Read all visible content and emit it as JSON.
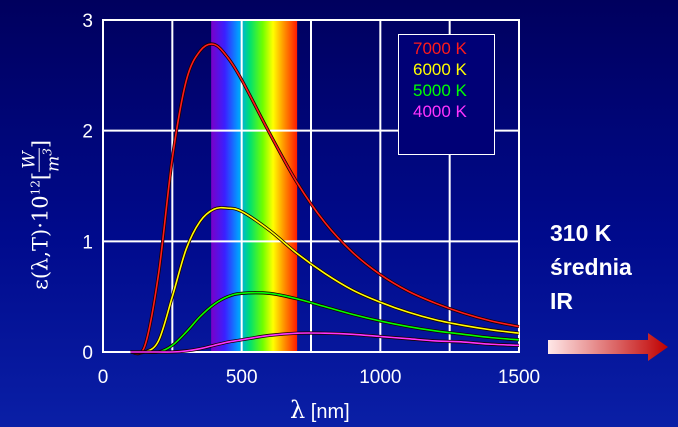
{
  "chart_data": {
    "type": "line",
    "title": "",
    "xlabel": {
      "symbol": "λ",
      "unit": "[nm]"
    },
    "ylabel": {
      "main": "ε(λ,T)·10",
      "exponent": "12",
      "bracket_open": "[",
      "numerator": "W",
      "denominator": "m",
      "denominator_exp": "3",
      "bracket_close": "]"
    },
    "xlim": [
      0,
      1500
    ],
    "ylim": [
      0,
      3
    ],
    "xticks": [
      0,
      500,
      1000,
      1500
    ],
    "yticks": [
      0,
      1,
      2,
      3
    ],
    "grid": true,
    "visible_spectrum_nm": [
      390,
      700
    ],
    "legend_position": "top-right",
    "x": [
      100,
      150,
      200,
      250,
      300,
      350,
      400,
      450,
      500,
      600,
      700,
      800,
      900,
      1000,
      1100,
      1200,
      1300,
      1400,
      1500
    ],
    "series": [
      {
        "name": "7000 K",
        "color": "#ff1a1a",
        "values": [
          0.0,
          0.05,
          0.7,
          1.75,
          2.45,
          2.72,
          2.78,
          2.66,
          2.46,
          1.98,
          1.53,
          1.17,
          0.9,
          0.7,
          0.55,
          0.44,
          0.35,
          0.28,
          0.23
        ]
      },
      {
        "name": "6000 K",
        "color": "#ffff00",
        "values": [
          0.0,
          0.0,
          0.1,
          0.5,
          0.93,
          1.18,
          1.29,
          1.3,
          1.27,
          1.1,
          0.89,
          0.71,
          0.56,
          0.45,
          0.36,
          0.29,
          0.24,
          0.2,
          0.17
        ]
      },
      {
        "name": "5000 K",
        "color": "#00ff00",
        "values": [
          0.0,
          0.0,
          0.0,
          0.06,
          0.18,
          0.32,
          0.43,
          0.5,
          0.53,
          0.53,
          0.48,
          0.41,
          0.34,
          0.28,
          0.23,
          0.19,
          0.16,
          0.13,
          0.11
        ]
      },
      {
        "name": "4000 K",
        "color": "#ff33ff",
        "values": [
          0.0,
          0.0,
          0.0,
          0.0,
          0.01,
          0.03,
          0.06,
          0.09,
          0.11,
          0.15,
          0.17,
          0.17,
          0.16,
          0.14,
          0.12,
          0.1,
          0.09,
          0.07,
          0.06
        ]
      }
    ]
  },
  "side_note": {
    "line1": "310 K",
    "line2": "średnia",
    "line3": "IR"
  },
  "colors": {
    "axes": "#ffffff",
    "background": "#00007a",
    "arrow_start": "#ffe8e8",
    "arrow_end": "#c00000"
  }
}
